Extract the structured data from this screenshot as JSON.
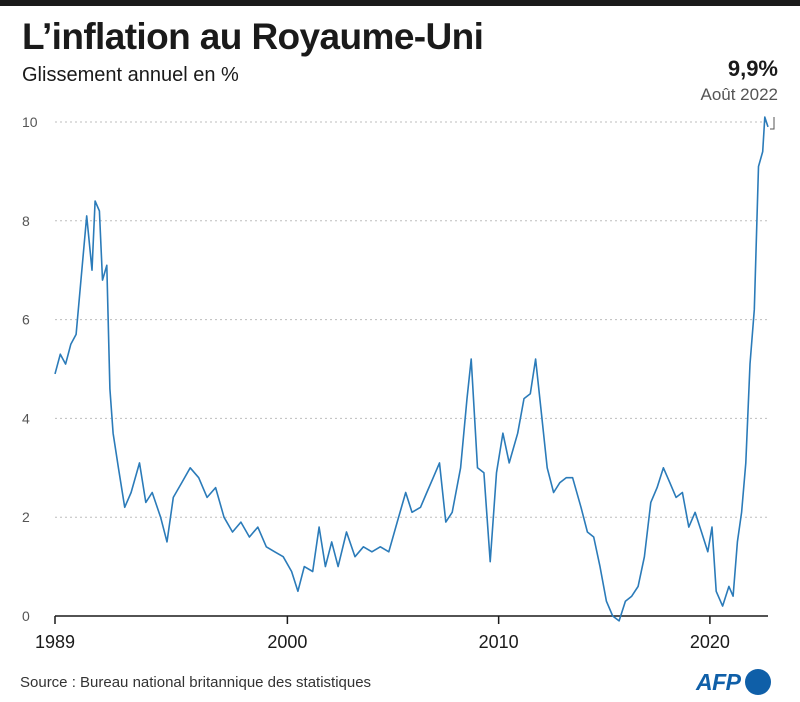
{
  "header": {
    "title": "L’inflation au Royaume-Uni",
    "subtitle": "Glissement annuel en %"
  },
  "annotation": {
    "value": "9,9%",
    "date": "Août 2022"
  },
  "footer": {
    "source": "Source : Bureau national britannique des statistiques",
    "logo_text": "AFP"
  },
  "colors": {
    "line": "#2b7bb9",
    "grid": "#bdbdbd",
    "axis": "#1a1a1a",
    "brand": "#0f5fa8"
  },
  "chart_data": {
    "type": "line",
    "title": "L’inflation au Royaume-Uni",
    "subtitle": "Glissement annuel en %",
    "xlabel": "",
    "ylabel": "",
    "x_ticks": [
      "1989",
      "2000",
      "2010",
      "2020"
    ],
    "y_ticks": [
      "0",
      "2",
      "4",
      "6",
      "8",
      "10"
    ],
    "ylim": [
      0,
      10
    ],
    "xlim": [
      1989.0,
      2022.75
    ],
    "grid": true,
    "grid_style": "dotted horizontal",
    "legend": "none",
    "series": [
      {
        "points": [
          [
            1989.0,
            4.9
          ],
          [
            1989.25,
            5.3
          ],
          [
            1989.5,
            5.1
          ],
          [
            1989.75,
            5.5
          ],
          [
            1990.0,
            5.7
          ],
          [
            1990.25,
            6.9
          ],
          [
            1990.5,
            8.1
          ],
          [
            1990.75,
            7.0
          ],
          [
            1990.9,
            8.4
          ],
          [
            1991.1,
            8.2
          ],
          [
            1991.25,
            6.8
          ],
          [
            1991.45,
            7.1
          ],
          [
            1991.6,
            4.6
          ],
          [
            1991.75,
            3.7
          ],
          [
            1992.0,
            3.0
          ],
          [
            1992.3,
            2.2
          ],
          [
            1992.6,
            2.5
          ],
          [
            1993.0,
            3.1
          ],
          [
            1993.3,
            2.3
          ],
          [
            1993.6,
            2.5
          ],
          [
            1994.0,
            2.0
          ],
          [
            1994.3,
            1.5
          ],
          [
            1994.6,
            2.4
          ],
          [
            1995.0,
            2.7
          ],
          [
            1995.4,
            3.0
          ],
          [
            1995.8,
            2.8
          ],
          [
            1996.2,
            2.4
          ],
          [
            1996.6,
            2.6
          ],
          [
            1997.0,
            2.0
          ],
          [
            1997.4,
            1.7
          ],
          [
            1997.8,
            1.9
          ],
          [
            1998.2,
            1.6
          ],
          [
            1998.6,
            1.8
          ],
          [
            1999.0,
            1.4
          ],
          [
            1999.4,
            1.3
          ],
          [
            1999.8,
            1.2
          ],
          [
            2000.2,
            0.9
          ],
          [
            2000.5,
            0.5
          ],
          [
            2000.8,
            1.0
          ],
          [
            2001.2,
            0.9
          ],
          [
            2001.5,
            1.8
          ],
          [
            2001.8,
            1.0
          ],
          [
            2002.1,
            1.5
          ],
          [
            2002.4,
            1.0
          ],
          [
            2002.8,
            1.7
          ],
          [
            2003.2,
            1.2
          ],
          [
            2003.6,
            1.4
          ],
          [
            2004.0,
            1.3
          ],
          [
            2004.4,
            1.4
          ],
          [
            2004.8,
            1.3
          ],
          [
            2005.2,
            1.9
          ],
          [
            2005.6,
            2.5
          ],
          [
            2005.9,
            2.1
          ],
          [
            2006.3,
            2.2
          ],
          [
            2006.6,
            2.5
          ],
          [
            2006.9,
            2.8
          ],
          [
            2007.2,
            3.1
          ],
          [
            2007.5,
            1.9
          ],
          [
            2007.8,
            2.1
          ],
          [
            2008.2,
            3.0
          ],
          [
            2008.5,
            4.4
          ],
          [
            2008.7,
            5.2
          ],
          [
            2009.0,
            3.0
          ],
          [
            2009.3,
            2.9
          ],
          [
            2009.6,
            1.1
          ],
          [
            2009.9,
            2.9
          ],
          [
            2010.2,
            3.7
          ],
          [
            2010.5,
            3.1
          ],
          [
            2010.9,
            3.7
          ],
          [
            2011.2,
            4.4
          ],
          [
            2011.5,
            4.5
          ],
          [
            2011.75,
            5.2
          ],
          [
            2012.0,
            4.2
          ],
          [
            2012.3,
            3.0
          ],
          [
            2012.6,
            2.5
          ],
          [
            2012.9,
            2.7
          ],
          [
            2013.2,
            2.8
          ],
          [
            2013.5,
            2.8
          ],
          [
            2013.9,
            2.2
          ],
          [
            2014.2,
            1.7
          ],
          [
            2014.5,
            1.6
          ],
          [
            2014.8,
            1.0
          ],
          [
            2015.1,
            0.3
          ],
          [
            2015.4,
            0.0
          ],
          [
            2015.7,
            -0.1
          ],
          [
            2016.0,
            0.3
          ],
          [
            2016.3,
            0.4
          ],
          [
            2016.6,
            0.6
          ],
          [
            2016.9,
            1.2
          ],
          [
            2017.2,
            2.3
          ],
          [
            2017.5,
            2.6
          ],
          [
            2017.8,
            3.0
          ],
          [
            2018.1,
            2.7
          ],
          [
            2018.4,
            2.4
          ],
          [
            2018.7,
            2.5
          ],
          [
            2019.0,
            1.8
          ],
          [
            2019.3,
            2.1
          ],
          [
            2019.6,
            1.7
          ],
          [
            2019.9,
            1.3
          ],
          [
            2020.1,
            1.8
          ],
          [
            2020.3,
            0.5
          ],
          [
            2020.6,
            0.2
          ],
          [
            2020.9,
            0.6
          ],
          [
            2021.1,
            0.4
          ],
          [
            2021.3,
            1.5
          ],
          [
            2021.5,
            2.1
          ],
          [
            2021.7,
            3.1
          ],
          [
            2021.9,
            5.1
          ],
          [
            2022.1,
            6.2
          ],
          [
            2022.3,
            9.1
          ],
          [
            2022.5,
            9.4
          ],
          [
            2022.6,
            10.1
          ],
          [
            2022.75,
            9.9
          ]
        ]
      }
    ]
  }
}
